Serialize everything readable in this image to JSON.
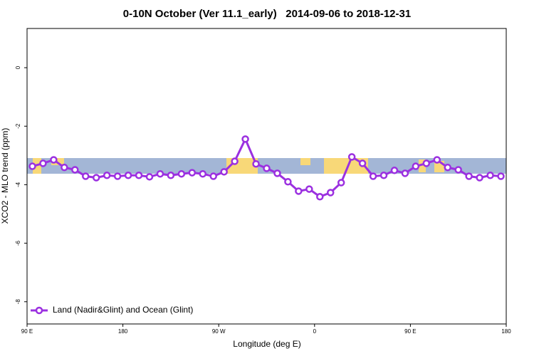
{
  "chart_data": {
    "type": "line",
    "title": "0-10N October (Ver 11.1_early)   2014-09-06 to 2018-12-31",
    "x_label": "Longitude (deg E)",
    "y_label": "XCO2 - MLO trend (ppm)",
    "x": [
      95,
      105,
      115,
      125,
      135,
      145,
      155,
      165,
      175,
      185,
      195,
      205,
      215,
      225,
      235,
      245,
      255,
      265,
      275,
      285,
      295,
      305,
      315,
      325,
      335,
      345,
      355,
      365,
      375,
      385,
      395,
      405,
      415,
      425,
      435,
      445,
      455,
      465,
      475,
      485,
      495,
      505,
      515,
      525,
      535
    ],
    "series": [
      {
        "name": "Land (Nadir&Glint) and Ocean (Glint)",
        "color": "#9b30e0",
        "values": [
          -3.37,
          -3.27,
          -3.15,
          -3.41,
          -3.49,
          -3.71,
          -3.76,
          -3.68,
          -3.71,
          -3.68,
          -3.68,
          -3.73,
          -3.63,
          -3.68,
          -3.63,
          -3.59,
          -3.63,
          -3.71,
          -3.56,
          -3.2,
          -2.44,
          -3.29,
          -3.44,
          -3.61,
          -3.9,
          -4.22,
          -4.15,
          -4.41,
          -4.27,
          -3.93,
          -3.05,
          -3.27,
          -3.71,
          -3.68,
          -3.51,
          -3.61,
          -3.37,
          -3.27,
          -3.15,
          -3.41,
          -3.49,
          -3.71,
          -3.76,
          -3.68,
          -3.71
        ]
      }
    ],
    "xlim": [
      90,
      540
    ],
    "xticks": [
      {
        "value": 90,
        "label": "90 E"
      },
      {
        "value": 180,
        "label": "180"
      },
      {
        "value": 270,
        "label": "90 W"
      },
      {
        "value": 360,
        "label": "0"
      },
      {
        "value": 450,
        "label": "90 E"
      },
      {
        "value": 540,
        "label": "180"
      }
    ],
    "ylim": [
      -8.76,
      1.34
    ],
    "yticks": [
      0,
      -2,
      -4,
      -6,
      -8
    ],
    "legend": "bottom-left"
  }
}
